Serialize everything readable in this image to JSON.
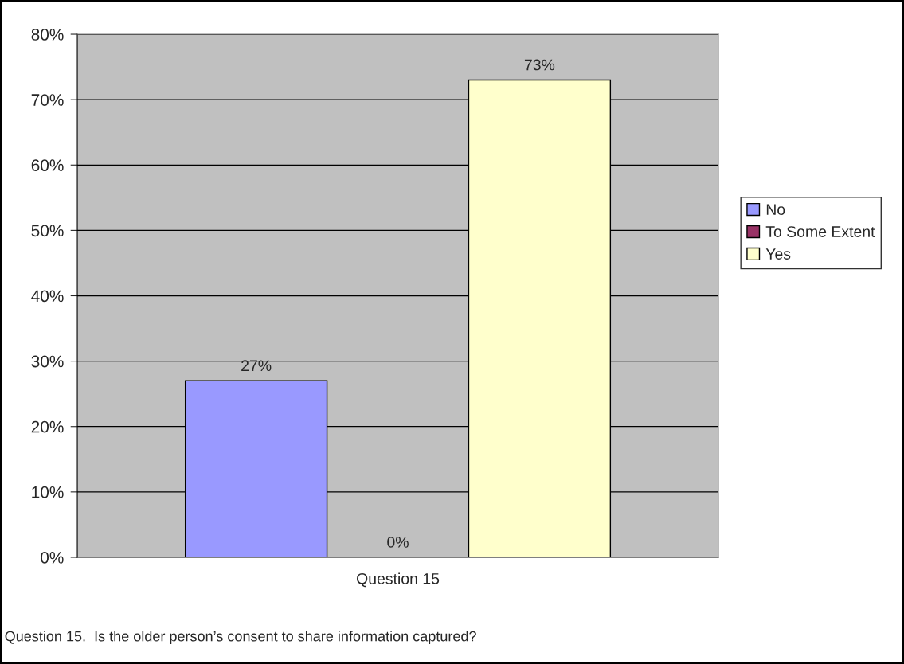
{
  "chart_data": {
    "type": "bar",
    "categories": [
      "Question 15"
    ],
    "series": [
      {
        "name": "No",
        "color": "#9999ff",
        "values": [
          27
        ],
        "value_labels": [
          "27%"
        ]
      },
      {
        "name": "To Some Extent",
        "color": "#993366",
        "values": [
          0
        ],
        "value_labels": [
          "0%"
        ]
      },
      {
        "name": "Yes",
        "color": "#ffffcc",
        "values": [
          73
        ],
        "value_labels": [
          "73%"
        ]
      }
    ],
    "ylim": [
      0,
      80
    ],
    "yticks": [
      {
        "value": 0,
        "label": "0%"
      },
      {
        "value": 10,
        "label": "10%"
      },
      {
        "value": 20,
        "label": "20%"
      },
      {
        "value": 30,
        "label": "30%"
      },
      {
        "value": 40,
        "label": "40%"
      },
      {
        "value": 50,
        "label": "50%"
      },
      {
        "value": 60,
        "label": "60%"
      },
      {
        "value": 70,
        "label": "70%"
      },
      {
        "value": 80,
        "label": "80%"
      }
    ],
    "grid": "y",
    "legend": "right",
    "annotations": [
      "Question 15.  Is the older person’s consent to share information captured?"
    ]
  }
}
